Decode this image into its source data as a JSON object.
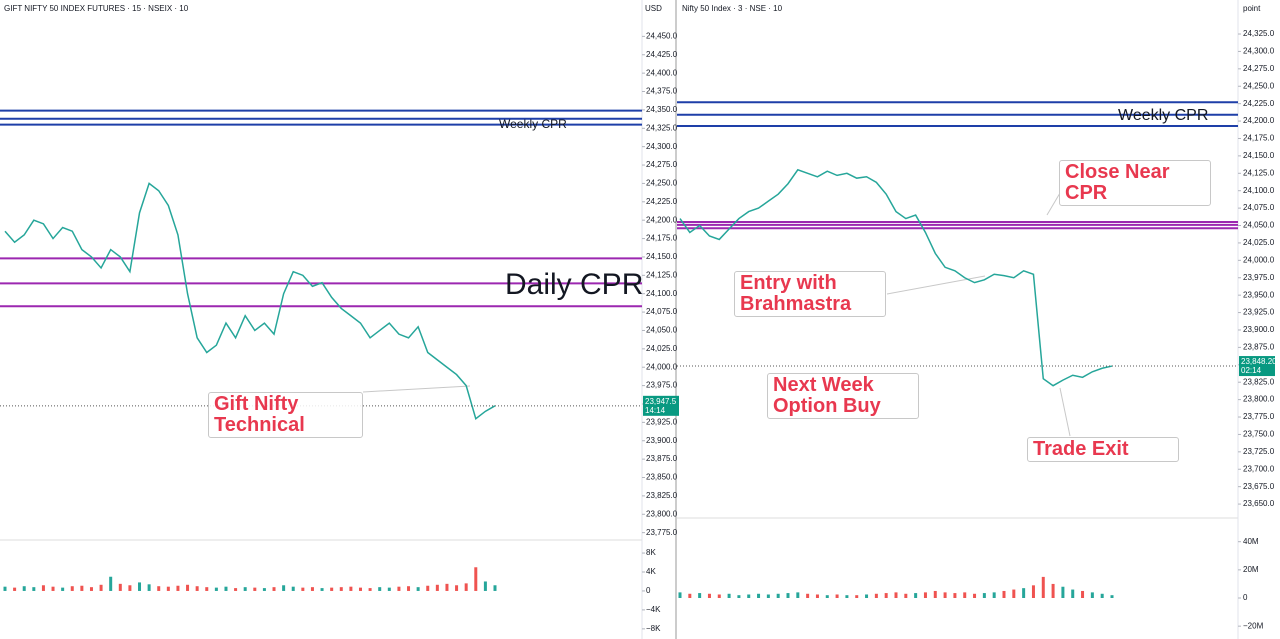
{
  "chart_data": [
    {
      "type": "line",
      "title": "GIFT NIFTY 50 INDEX FUTURES · 15 · NSEIX",
      "indicators": "10",
      "unit": "USD",
      "color": "#26a69a",
      "values": [
        24185,
        24170,
        24180,
        24200,
        24195,
        24175,
        24190,
        24185,
        24160,
        24150,
        24135,
        24160,
        24150,
        24130,
        24210,
        24250,
        24240,
        24220,
        24180,
        24100,
        24040,
        24020,
        24030,
        24060,
        24040,
        24070,
        24050,
        24060,
        24045,
        24100,
        24130,
        24125,
        24110,
        24115,
        24095,
        24080,
        24070,
        24060,
        24040,
        24050,
        24060,
        24045,
        24040,
        24055,
        24020,
        24010,
        24000,
        23990,
        23975,
        23930,
        23940,
        23947.5
      ],
      "last_price": {
        "value": 23947.5,
        "label": "23,947.5"
      },
      "countdown": "14:14",
      "ylim": [
        23765,
        24475
      ],
      "yticks": [
        {
          "value": 23775,
          "label": "23,775.0"
        },
        {
          "value": 23800,
          "label": "23,800.0"
        },
        {
          "value": 23825,
          "label": "23,825.0"
        },
        {
          "value": 23850,
          "label": "23,850.0"
        },
        {
          "value": 23875,
          "label": "23,875.0"
        },
        {
          "value": 23900,
          "label": "23,900.0"
        },
        {
          "value": 23925,
          "label": "23,925.0"
        },
        {
          "value": 23950,
          "label": "23,950.0"
        },
        {
          "value": 23975,
          "label": "23,975.0"
        },
        {
          "value": 24000,
          "label": "24,000.0"
        },
        {
          "value": 24025,
          "label": "24,025.0"
        },
        {
          "value": 24050,
          "label": "24,050.0"
        },
        {
          "value": 24075,
          "label": "24,075.0"
        },
        {
          "value": 24100,
          "label": "24,100.0"
        },
        {
          "value": 24125,
          "label": "24,125.0"
        },
        {
          "value": 24150,
          "label": "24,150.0"
        },
        {
          "value": 24175,
          "label": "24,175.0"
        },
        {
          "value": 24200,
          "label": "24,200.0"
        },
        {
          "value": 24225,
          "label": "24,225.0"
        },
        {
          "value": 24250,
          "label": "24,250.0"
        },
        {
          "value": 24275,
          "label": "24,275.0"
        },
        {
          "value": 24300,
          "label": "24,300.0"
        },
        {
          "value": 24325,
          "label": "24,325.0"
        },
        {
          "value": 24350,
          "label": "24,350.0"
        },
        {
          "value": 24375,
          "label": "24,375.0"
        },
        {
          "value": 24400,
          "label": "24,400.0"
        },
        {
          "value": 24425,
          "label": "24,425.0"
        },
        {
          "value": 24450,
          "label": "24,450.0"
        }
      ],
      "levels": [
        {
          "value": 24349,
          "color": "#1e3fa8"
        },
        {
          "value": 24338,
          "color": "#1e3fa8"
        },
        {
          "value": 24330,
          "color": "#1e3fa8"
        },
        {
          "value": 24148,
          "color": "#9c27b0"
        },
        {
          "value": 24114,
          "color": "#9c27b0"
        },
        {
          "value": 24083,
          "color": "#9c27b0"
        }
      ],
      "volume": {
        "values": [
          900,
          700,
          1000,
          800,
          1200,
          900,
          700,
          1000,
          1100,
          800,
          1300,
          3000,
          1500,
          1200,
          1800,
          1400,
          1000,
          900,
          1100,
          1300,
          1000,
          800,
          700,
          900,
          600,
          800,
          700,
          600,
          800,
          1200,
          900,
          700,
          800,
          600,
          700,
          800,
          900,
          700,
          600,
          800,
          700,
          900,
          1000,
          800,
          1100,
          1300,
          1500,
          1200,
          1600,
          5000,
          2000,
          1200
        ],
        "ylim": [
          -9300,
          9700
        ],
        "yticks": [
          {
            "value": 8000,
            "label": "8K"
          },
          {
            "value": 4000,
            "label": "4K"
          },
          0,
          {
            "value": -4000,
            "label": "−4K"
          },
          {
            "value": -8000,
            "label": "−8K"
          }
        ]
      },
      "annotations": [
        "Weekly CPR",
        "Daily CPR",
        "Gift Nifty Technical"
      ]
    },
    {
      "type": "line",
      "title": "Nifty 50 Index · 3 · NSE",
      "indicators": "10",
      "unit": "point",
      "color": "#26a69a",
      "values": [
        24060,
        24040,
        24050,
        24035,
        24030,
        24045,
        24060,
        24070,
        24075,
        24085,
        24095,
        24110,
        24130,
        24125,
        24120,
        24128,
        24122,
        24125,
        24118,
        24120,
        24112,
        24095,
        24070,
        24060,
        24065,
        24040,
        24010,
        23990,
        23985,
        23975,
        23968,
        23972,
        23980,
        23978,
        23975,
        23985,
        23980,
        23830,
        23820,
        23828,
        23835,
        23832,
        23840,
        23845,
        23848.2
      ],
      "last_price": {
        "value": 23848.2,
        "label": "23,848.20"
      },
      "countdown": "02:14",
      "ylim": [
        23630,
        24348
      ],
      "yticks": [
        {
          "value": 23650,
          "label": "23,650.0"
        },
        {
          "value": 23675,
          "label": "23,675.0"
        },
        {
          "value": 23700,
          "label": "23,700.0"
        },
        {
          "value": 23725,
          "label": "23,725.0"
        },
        {
          "value": 23750,
          "label": "23,750.0"
        },
        {
          "value": 23775,
          "label": "23,775.0"
        },
        {
          "value": 23800,
          "label": "23,800.0"
        },
        {
          "value": 23825,
          "label": "23,825.0"
        },
        {
          "value": 23850,
          "label": "23,850.0"
        },
        {
          "value": 23875,
          "label": "23,875.0"
        },
        {
          "value": 23900,
          "label": "23,900.0"
        },
        {
          "value": 23925,
          "label": "23,925.0"
        },
        {
          "value": 23950,
          "label": "23,950.0"
        },
        {
          "value": 23975,
          "label": "23,975.0"
        },
        {
          "value": 24000,
          "label": "24,000.0"
        },
        {
          "value": 24025,
          "label": "24,025.0"
        },
        {
          "value": 24050,
          "label": "24,050.0"
        },
        {
          "value": 24075,
          "label": "24,075.0"
        },
        {
          "value": 24100,
          "label": "24,100.0"
        },
        {
          "value": 24125,
          "label": "24,125.0"
        },
        {
          "value": 24150,
          "label": "24,150.0"
        },
        {
          "value": 24175,
          "label": "24,175.0"
        },
        {
          "value": 24200,
          "label": "24,200.0"
        },
        {
          "value": 24225,
          "label": "24,225.0"
        },
        {
          "value": 24250,
          "label": "24,250.0"
        },
        {
          "value": 24275,
          "label": "24,275.0"
        },
        {
          "value": 24300,
          "label": "24,300.0"
        },
        {
          "value": 24325,
          "label": "24,325.0"
        }
      ],
      "levels": [
        {
          "value": 24227,
          "color": "#1e3fa8"
        },
        {
          "value": 24209,
          "color": "#1e3fa8"
        },
        {
          "value": 24193,
          "color": "#1e3fa8"
        },
        {
          "value": 24055,
          "color": "#9c27b0"
        },
        {
          "value": 24051,
          "color": "#9c27b0"
        },
        {
          "value": 24046,
          "color": "#9c27b0"
        }
      ],
      "volume": {
        "values": [
          4000000,
          3000000,
          3500000,
          3000000,
          2500000,
          3000000,
          2000000,
          2500000,
          3000000,
          2500000,
          3000000,
          3500000,
          4000000,
          3000000,
          2500000,
          2000000,
          2500000,
          2000000,
          2000000,
          2500000,
          3000000,
          3500000,
          4000000,
          3000000,
          3500000,
          4000000,
          5000000,
          4000000,
          3500000,
          4000000,
          3000000,
          3500000,
          4000000,
          5000000,
          6000000,
          7000000,
          9000000,
          15000000,
          10000000,
          8000000,
          6000000,
          5000000,
          4000000,
          3000000,
          2000000
        ],
        "ylim": [
          -27000000,
          54000000
        ],
        "yticks": [
          {
            "value": 40000000,
            "label": "40M"
          },
          {
            "value": 20000000,
            "label": "20M"
          },
          0,
          {
            "value": -20000000,
            "label": "−20M"
          }
        ]
      },
      "annotations": [
        "Weekly CPR",
        "Close Near CPR",
        "Entry with Brahmastra",
        "Next Week Option Buy",
        "Trade Exit"
      ]
    }
  ]
}
